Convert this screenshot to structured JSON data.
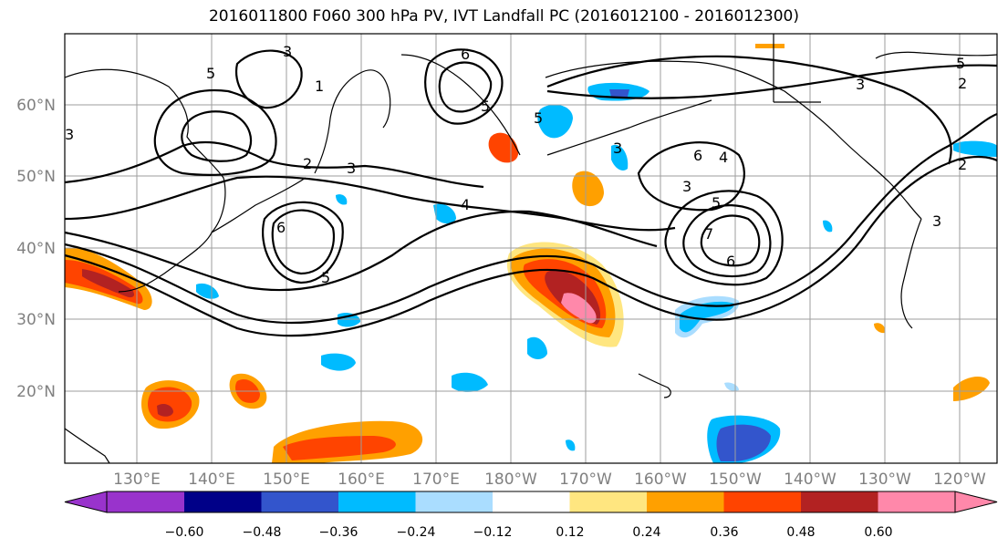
{
  "title": "2016011800 F060 300 hPa PV, IVT Landfall PC (2016012100 - 2016012300)",
  "map": {
    "lon_labels": [
      "130°E",
      "140°E",
      "150°E",
      "160°E",
      "170°E",
      "180°W",
      "170°W",
      "160°W",
      "150°W",
      "140°W",
      "130°W",
      "120°W"
    ],
    "lat_labels": [
      "60°N",
      "50°N",
      "40°N",
      "30°N",
      "20°N"
    ],
    "pv_contour_labels": [
      "5",
      "3",
      "1",
      "6",
      "5",
      "5",
      "3",
      "2",
      "3",
      "6",
      "4",
      "5",
      "3",
      "5",
      "6",
      "4",
      "3",
      "5",
      "7",
      "6",
      "3",
      "2",
      "2",
      "3"
    ]
  },
  "colorbar": {
    "ticks": [
      "−0.60",
      "−0.48",
      "−0.36",
      "−0.24",
      "−0.12",
      "0.12",
      "0.24",
      "0.36",
      "0.48",
      "0.60"
    ],
    "colors": [
      "#9933cc",
      "#000088",
      "#3355cc",
      "#00bbff",
      "#aaddff",
      "#ffffff",
      "#ffe680",
      "#ffa000",
      "#ff4400",
      "#b22222",
      "#ff88aa"
    ]
  }
}
